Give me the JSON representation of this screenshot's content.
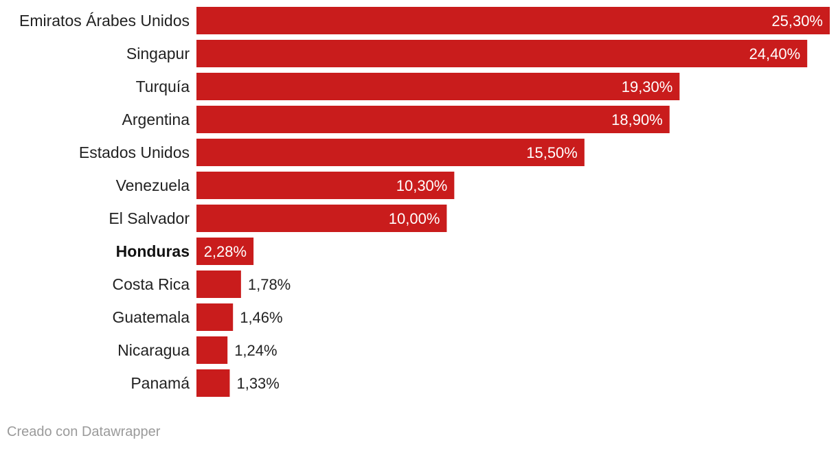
{
  "chart_data": {
    "type": "bar",
    "orientation": "horizontal",
    "categories": [
      "Emiratos Árabes Unidos",
      "Singapur",
      "Turquía",
      "Argentina",
      "Estados Unidos",
      "Venezuela",
      "El Salvador",
      "Honduras",
      "Costa Rica",
      "Guatemala",
      "Nicaragua",
      "Panamá"
    ],
    "values": [
      25.3,
      24.4,
      19.3,
      18.9,
      15.5,
      10.3,
      10.0,
      2.28,
      1.78,
      1.46,
      1.24,
      1.33
    ],
    "value_labels": [
      "25,30%",
      "24,40%",
      "19,30%",
      "18,90%",
      "15,50%",
      "10,30%",
      "10,00%",
      "2,28%",
      "1,78%",
      "1,46%",
      "1,24%",
      "1,33%"
    ],
    "highlighted_category": "Honduras",
    "bar_color": "#c91c1c",
    "xlim": [
      0,
      25.3
    ],
    "grid": false
  },
  "footer": {
    "credit": "Creado con Datawrapper"
  }
}
